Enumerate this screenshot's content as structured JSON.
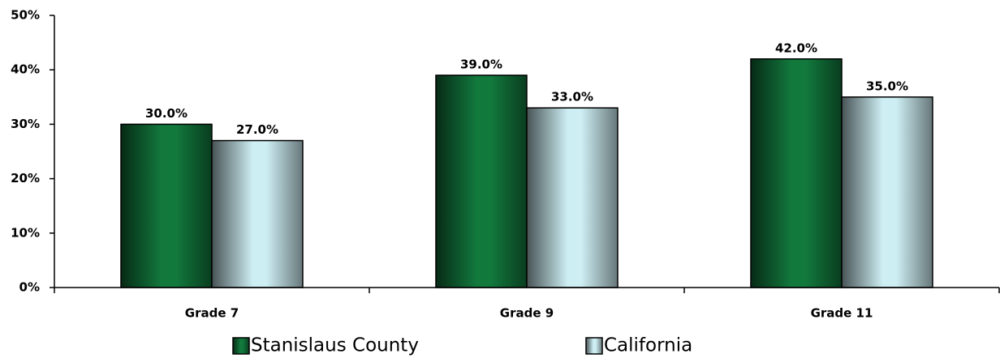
{
  "chart_data": {
    "type": "bar",
    "categories": [
      "Grade 7",
      "Grade 9",
      "Grade 11"
    ],
    "series": [
      {
        "name": "Stanislaus County",
        "color": "#12793d",
        "values": [
          30,
          39,
          42
        ],
        "value_labels": [
          "30.0%",
          "39.0%",
          "42.0%"
        ]
      },
      {
        "name": "California",
        "color": "#cdeef3",
        "values": [
          27,
          33,
          35
        ],
        "value_labels": [
          "27.0%",
          "33.0%",
          "35.0%"
        ]
      }
    ],
    "ylim": [
      0,
      50
    ],
    "yticks": [
      {
        "value": 0,
        "label": "0%"
      },
      {
        "value": 10,
        "label": "10%"
      },
      {
        "value": 20,
        "label": "20%"
      },
      {
        "value": 30,
        "label": "30%"
      },
      {
        "value": 40,
        "label": "40%"
      },
      {
        "value": 50,
        "label": "50%"
      }
    ],
    "legend": "bottom"
  }
}
